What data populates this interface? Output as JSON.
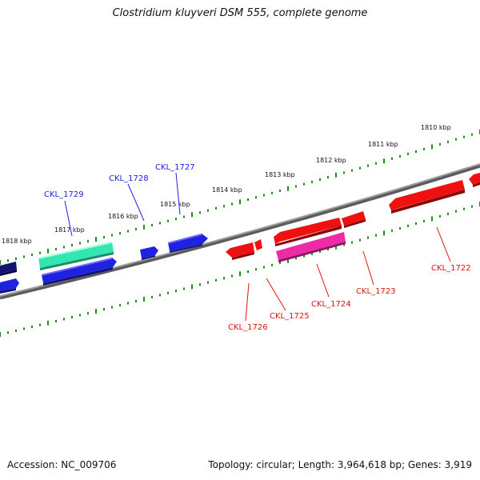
{
  "title": "Clostridium kluyveri DSM 555, complete genome",
  "footer": {
    "accession": "Accession: NC_009706",
    "summary": "Topology: circular; Length: 3,964,618 bp; Genes: 3,919"
  },
  "scale_labels": [
    "1818 kbp",
    "1817 kbp",
    "1816 kbp",
    "1815 kbp",
    "1814 kbp",
    "1813 kbp",
    "1812 kbp",
    "1811 kbp",
    "1810 kbp"
  ],
  "genes": [
    {
      "label": "CKL_1729",
      "strand": "forward",
      "color": "#33e6b0"
    },
    {
      "label": "CKL_1728",
      "strand": "forward",
      "color": "#1f22e0"
    },
    {
      "label": "CKL_1727",
      "strand": "forward",
      "color": "#1f22e0"
    },
    {
      "label": "CKL_1726",
      "strand": "reverse",
      "color": "#f01010"
    },
    {
      "label": "CKL_1725",
      "strand": "reverse",
      "color": "#f01010"
    },
    {
      "label": "CKL_1724",
      "strand": "reverse",
      "color": "#ee2aa6"
    },
    {
      "label": "CKL_1723",
      "strand": "reverse",
      "color": "#f01010"
    },
    {
      "label": "CKL_1722",
      "strand": "reverse",
      "color": "#f01010"
    }
  ],
  "colors": {
    "backbone": "#808080",
    "tick": "#1a8c1a",
    "forward_label": "#1f22e0",
    "reverse_label": "#e01010",
    "dark_gene": "#141470"
  }
}
